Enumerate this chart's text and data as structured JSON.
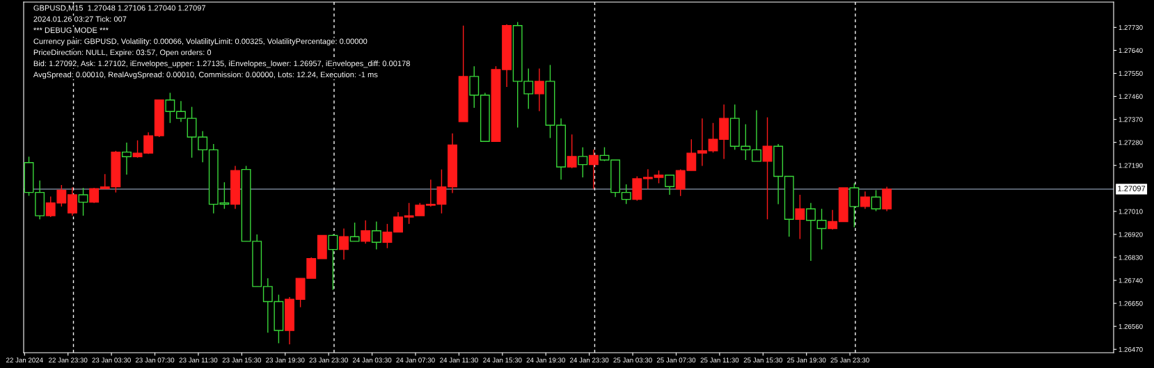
{
  "chart_data": {
    "type": "candlestick",
    "title": "GBPUSD,M15  1.27048 1.27106 1.27040 1.27097",
    "annotations": [
      "2024.01.26 03:27 Tick: 007",
      "*** DEBUG MODE ***",
      "Currency pair: GBPUSD, Volatility: 0.00066, VolatilityLimit: 0.00325, VolatilityPercentage: 0.00000",
      "PriceDirection: NULL, Expire: 03:57, Open orders: 0",
      "Bid: 1.27092, Ask: 1.27102, iEnvelopes_upper: 1.27135, iEnvelopes_lower: 1.26957, iEnvelopes_diff: 0.00178",
      "AvgSpread: 0.00010, RealAvgSpread: 0.00010, Commission: 0.00000, Lots: 12.24, Execution: -1 ms"
    ],
    "x": [
      "2024-01-22T19:30",
      "2024-01-22T20:30",
      "2024-01-22T21:30",
      "2024-01-22T22:30",
      "2024-01-22T23:30",
      "2024-01-23T00:30",
      "2024-01-23T01:30",
      "2024-01-23T02:30",
      "2024-01-23T03:30",
      "2024-01-23T04:30",
      "2024-01-23T05:30",
      "2024-01-23T06:30",
      "2024-01-23T07:30",
      "2024-01-23T08:30",
      "2024-01-23T09:30",
      "2024-01-23T10:30",
      "2024-01-23T11:30",
      "2024-01-23T12:30",
      "2024-01-23T13:30",
      "2024-01-23T14:30",
      "2024-01-23T15:30",
      "2024-01-23T16:30",
      "2024-01-23T17:30",
      "2024-01-23T18:30",
      "2024-01-23T19:30",
      "2024-01-23T20:30",
      "2024-01-23T21:30",
      "2024-01-23T22:30",
      "2024-01-23T23:30",
      "2024-01-24T00:30",
      "2024-01-24T01:30",
      "2024-01-24T02:30",
      "2024-01-24T03:30",
      "2024-01-24T04:30",
      "2024-01-24T05:30",
      "2024-01-24T06:30",
      "2024-01-24T07:30",
      "2024-01-24T08:30",
      "2024-01-24T09:30",
      "2024-01-24T10:30",
      "2024-01-24T11:30",
      "2024-01-24T12:30",
      "2024-01-24T13:30",
      "2024-01-24T14:30",
      "2024-01-24T15:30",
      "2024-01-24T16:30",
      "2024-01-24T17:30",
      "2024-01-24T18:30",
      "2024-01-24T19:30",
      "2024-01-24T20:30",
      "2024-01-24T21:30",
      "2024-01-24T22:30",
      "2024-01-24T23:30",
      "2024-01-25T00:30",
      "2024-01-25T01:30",
      "2024-01-25T02:30",
      "2024-01-25T03:30",
      "2024-01-25T04:30",
      "2024-01-25T05:30",
      "2024-01-25T06:30",
      "2024-01-25T07:30",
      "2024-01-25T08:30",
      "2024-01-25T09:30",
      "2024-01-25T10:30",
      "2024-01-25T11:30",
      "2024-01-25T12:30",
      "2024-01-25T13:30",
      "2024-01-25T14:30",
      "2024-01-25T15:30",
      "2024-01-25T16:30",
      "2024-01-25T17:30",
      "2024-01-25T18:30",
      "2024-01-25T19:30",
      "2024-01-25T20:30",
      "2024-01-25T21:30",
      "2024-01-25T22:30",
      "2024-01-25T23:30",
      "2024-01-26T00:30",
      "2024-01-26T01:30",
      "2024-01-26T02:30"
    ],
    "ohlc": [
      [
        1.27201,
        1.27224,
        1.27071,
        1.27084
      ],
      [
        1.27084,
        1.27131,
        1.26979,
        1.26993
      ],
      [
        1.26993,
        1.27068,
        1.26988,
        1.27043
      ],
      [
        1.27043,
        1.27113,
        1.27029,
        1.27093
      ],
      [
        1.27004,
        1.27104,
        1.26993,
        1.27075
      ],
      [
        1.27075,
        1.27102,
        1.26993,
        1.27046
      ],
      [
        1.27046,
        1.27102,
        1.27043,
        1.27099
      ],
      [
        1.27099,
        1.27156,
        1.27097,
        1.27106
      ],
      [
        1.27106,
        1.27247,
        1.27084,
        1.27242
      ],
      [
        1.27242,
        1.27279,
        1.27154,
        1.27224
      ],
      [
        1.27224,
        1.27288,
        1.2722,
        1.27238
      ],
      [
        1.27238,
        1.27319,
        1.27235,
        1.27306
      ],
      [
        1.27306,
        1.27446,
        1.27301,
        1.27446
      ],
      [
        1.27446,
        1.27474,
        1.27356,
        1.27401
      ],
      [
        1.27401,
        1.27442,
        1.2736,
        1.27374
      ],
      [
        1.27374,
        1.27419,
        1.2722,
        1.27301
      ],
      [
        1.27301,
        1.27324,
        1.27202,
        1.27251
      ],
      [
        1.27251,
        1.27274,
        1.27002,
        1.27038
      ],
      [
        1.27043,
        1.27124,
        1.2702,
        1.27038
      ],
      [
        1.27038,
        1.27188,
        1.2702,
        1.2717
      ],
      [
        1.27174,
        1.27188,
        1.26893,
        1.26893
      ],
      [
        1.26893,
        1.2692,
        1.26716,
        1.26716
      ],
      [
        1.26716,
        1.26748,
        1.26535,
        1.26657
      ],
      [
        1.26657,
        1.26684,
        1.26494,
        1.26544
      ],
      [
        1.26544,
        1.26675,
        1.2649,
        1.26666
      ],
      [
        1.26666,
        1.26748,
        1.26635,
        1.26748
      ],
      [
        1.26748,
        1.2683,
        1.26748,
        1.26825
      ],
      [
        1.26825,
        1.26916,
        1.26825,
        1.26916
      ],
      [
        1.26916,
        1.2692,
        1.26703,
        1.26861
      ],
      [
        1.26861,
        1.26943,
        1.26821,
        1.26911
      ],
      [
        1.26911,
        1.26966,
        1.26893,
        1.26893
      ],
      [
        1.26893,
        1.26975,
        1.26884,
        1.26934
      ],
      [
        1.26934,
        1.2697,
        1.26861,
        1.26889
      ],
      [
        1.26889,
        1.26961,
        1.26866,
        1.26929
      ],
      [
        1.26929,
        1.27007,
        1.26929,
        1.26988
      ],
      [
        1.26988,
        1.27043,
        1.26961,
        1.26993
      ],
      [
        1.26993,
        1.27043,
        1.26993,
        1.27034
      ],
      [
        1.27034,
        1.27134,
        1.27029,
        1.27038
      ],
      [
        1.27038,
        1.27174,
        1.27002,
        1.27106
      ],
      [
        1.27106,
        1.27315,
        1.27082,
        1.2727
      ],
      [
        1.27361,
        1.27737,
        1.27361,
        1.27538
      ],
      [
        1.27538,
        1.27578,
        1.27415,
        1.27465
      ],
      [
        1.27465,
        1.27474,
        1.27284,
        1.27284
      ],
      [
        1.27284,
        1.27578,
        1.27284,
        1.27565
      ],
      [
        1.27565,
        1.27742,
        1.27497,
        1.27737
      ],
      [
        1.27737,
        1.27751,
        1.27338,
        1.27519
      ],
      [
        1.27519,
        1.27569,
        1.27411,
        1.2747
      ],
      [
        1.2747,
        1.27569,
        1.27402,
        1.27519
      ],
      [
        1.27519,
        1.27583,
        1.27297,
        1.27347
      ],
      [
        1.27347,
        1.27374,
        1.27134,
        1.27184
      ],
      [
        1.27184,
        1.27311,
        1.27179,
        1.27225
      ],
      [
        1.27225,
        1.27261,
        1.27143,
        1.27193
      ],
      [
        1.27193,
        1.27252,
        1.27098,
        1.27229
      ],
      [
        1.27229,
        1.27261,
        1.27207,
        1.27211
      ],
      [
        1.27211,
        1.27211,
        1.27066,
        1.27084
      ],
      [
        1.27084,
        1.27116,
        1.27039,
        1.27057
      ],
      [
        1.27057,
        1.27147,
        1.27052,
        1.27138
      ],
      [
        1.27138,
        1.27175,
        1.27098,
        1.27143
      ],
      [
        1.27143,
        1.2717,
        1.2712,
        1.27152
      ],
      [
        1.27152,
        1.27152,
        1.27075,
        1.27107
      ],
      [
        1.27097,
        1.27174,
        1.2707,
        1.2717
      ],
      [
        1.2717,
        1.27292,
        1.2717,
        1.27238
      ],
      [
        1.27238,
        1.27374,
        1.27188,
        1.27247
      ],
      [
        1.27247,
        1.27356,
        1.2724,
        1.27292
      ],
      [
        1.27292,
        1.27428,
        1.27215,
        1.27374
      ],
      [
        1.27374,
        1.27428,
        1.27251,
        1.27265
      ],
      [
        1.27265,
        1.27351,
        1.27211,
        1.27251
      ],
      [
        1.27251,
        1.27406,
        1.27206,
        1.27206
      ],
      [
        1.27206,
        1.27378,
        1.26979,
        1.27265
      ],
      [
        1.27265,
        1.27274,
        1.27038,
        1.27147
      ],
      [
        1.27147,
        1.27147,
        1.26911,
        1.26979
      ],
      [
        1.26979,
        1.27075,
        1.26902,
        1.2702
      ],
      [
        1.2702,
        1.27043,
        1.26816,
        1.26975
      ],
      [
        1.26975,
        1.2702,
        1.26861,
        1.26943
      ],
      [
        1.26943,
        1.27016,
        1.26939,
        1.2697
      ],
      [
        1.2697,
        1.27102,
        1.2697,
        1.27102
      ],
      [
        1.27102,
        1.2712,
        1.26948,
        1.27029
      ],
      [
        1.27029,
        1.27088,
        1.2702,
        1.27066
      ],
      [
        1.27066,
        1.27093,
        1.27011,
        1.2702
      ],
      [
        1.2702,
        1.27106,
        1.27011,
        1.27097
      ]
    ],
    "colors": [
      "#3ad83a",
      "#3ad83a",
      "#ff1a1a",
      "#ff1a1a",
      "#ff1a1a",
      "#3ad83a",
      "#ff1a1a",
      "#ff1a1a",
      "#ff1a1a",
      "#3ad83a",
      "#ff1a1a",
      "#ff1a1a",
      "#ff1a1a",
      "#3ad83a",
      "#3ad83a",
      "#3ad83a",
      "#3ad83a",
      "#3ad83a",
      "#3ad83a",
      "#ff1a1a",
      "#3ad83a",
      "#3ad83a",
      "#3ad83a",
      "#3ad83a",
      "#ff1a1a",
      "#ff1a1a",
      "#ff1a1a",
      "#ff1a1a",
      "#3ad83a",
      "#ff1a1a",
      "#3ad83a",
      "#ff1a1a",
      "#3ad83a",
      "#ff1a1a",
      "#ff1a1a",
      "#ff1a1a",
      "#ff1a1a",
      "#ff1a1a",
      "#ff1a1a",
      "#ff1a1a",
      "#ff1a1a",
      "#3ad83a",
      "#3ad83a",
      "#ff1a1a",
      "#ff1a1a",
      "#3ad83a",
      "#3ad83a",
      "#ff1a1a",
      "#3ad83a",
      "#3ad83a",
      "#ff1a1a",
      "#3ad83a",
      "#ff1a1a",
      "#3ad83a",
      "#3ad83a",
      "#3ad83a",
      "#ff1a1a",
      "#ff1a1a",
      "#ff1a1a",
      "#3ad83a",
      "#ff1a1a",
      "#ff1a1a",
      "#ff1a1a",
      "#ff1a1a",
      "#ff1a1a",
      "#3ad83a",
      "#3ad83a",
      "#3ad83a",
      "#ff1a1a",
      "#3ad83a",
      "#3ad83a",
      "#ff1a1a",
      "#3ad83a",
      "#3ad83a",
      "#ff1a1a",
      "#ff1a1a",
      "#3ad83a",
      "#ff1a1a",
      "#3ad83a",
      "#ff1a1a"
    ],
    "xlim": [
      "2024-01-22T19:25",
      "2024-01-26T23:47"
    ],
    "xticks": [
      {
        "value": "2024-01-22T19:30",
        "label": "22 Jan 2024"
      },
      {
        "value": "2024-01-22T23:30",
        "label": "22 Jan 23:30"
      },
      {
        "value": "2024-01-23T03:30",
        "label": "23 Jan 03:30"
      },
      {
        "value": "2024-01-23T07:30",
        "label": "23 Jan 07:30"
      },
      {
        "value": "2024-01-23T11:30",
        "label": "23 Jan 11:30"
      },
      {
        "value": "2024-01-23T15:30",
        "label": "23 Jan 15:30"
      },
      {
        "value": "2024-01-23T19:30",
        "label": "23 Jan 19:30"
      },
      {
        "value": "2024-01-23T23:30",
        "label": "23 Jan 23:30"
      },
      {
        "value": "2024-01-24T03:30",
        "label": "24 Jan 03:30"
      },
      {
        "value": "2024-01-24T07:30",
        "label": "24 Jan 07:30"
      },
      {
        "value": "2024-01-24T11:30",
        "label": "24 Jan 11:30"
      },
      {
        "value": "2024-01-24T15:30",
        "label": "24 Jan 15:30"
      },
      {
        "value": "2024-01-24T19:30",
        "label": "24 Jan 19:30"
      },
      {
        "value": "2024-01-24T23:30",
        "label": "24 Jan 23:30"
      },
      {
        "value": "2024-01-25T03:30",
        "label": "25 Jan 03:30"
      },
      {
        "value": "2024-01-25T07:30",
        "label": "25 Jan 07:30"
      },
      {
        "value": "2024-01-25T11:30",
        "label": "25 Jan 11:30"
      },
      {
        "value": "2024-01-25T15:30",
        "label": "25 Jan 15:30"
      },
      {
        "value": "2024-01-25T19:30",
        "label": "25 Jan 19:30"
      },
      {
        "value": "2024-01-25T23:30",
        "label": "25 Jan 23:30"
      }
    ],
    "ylim": [
      1.26457,
      1.27829
    ],
    "yticks": [
      {
        "value": 1.2773,
        "label": "1.27730"
      },
      {
        "value": 1.2764,
        "label": "1.27640"
      },
      {
        "value": 1.2755,
        "label": "1.27550"
      },
      {
        "value": 1.2746,
        "label": "1.27460"
      },
      {
        "value": 1.2737,
        "label": "1.27370"
      },
      {
        "value": 1.2728,
        "label": "1.27280"
      },
      {
        "value": 1.2719,
        "label": "1.27190"
      },
      {
        "value": 1.2701,
        "label": "1.27010"
      },
      {
        "value": 1.2692,
        "label": "1.26920"
      },
      {
        "value": 1.2683,
        "label": "1.26830"
      },
      {
        "value": 1.2674,
        "label": "1.26740"
      },
      {
        "value": 1.2665,
        "label": "1.26650"
      },
      {
        "value": 1.2656,
        "label": "1.26560"
      },
      {
        "value": 1.2647,
        "label": "1.26470"
      }
    ],
    "ref_lines": [
      {
        "axis": "y",
        "value": 1.27097,
        "label": "1.27097",
        "color": "#8c9bb0",
        "line_style": "solid"
      },
      {
        "axis": "x",
        "value": "2024-01-23T00:00",
        "color": "#ffffff",
        "line_style": "dashed"
      },
      {
        "axis": "x",
        "value": "2024-01-24T00:00",
        "color": "#ffffff",
        "line_style": "dashed"
      },
      {
        "axis": "x",
        "value": "2024-01-25T00:00",
        "color": "#ffffff",
        "line_style": "dashed"
      },
      {
        "axis": "x",
        "value": "2024-01-26T00:00",
        "color": "#ffffff",
        "line_style": "dashed"
      }
    ]
  }
}
